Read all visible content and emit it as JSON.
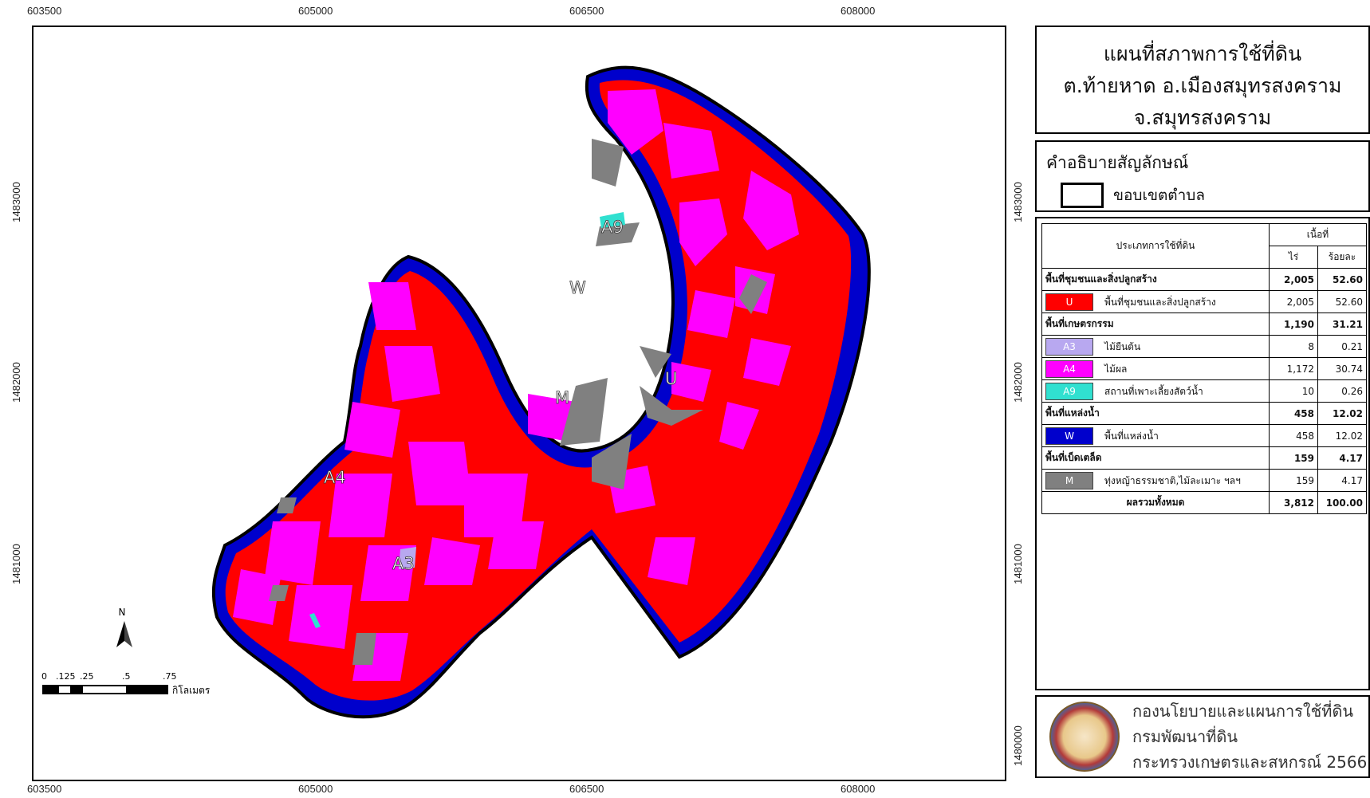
{
  "coords": {
    "top_x": [
      "603500",
      "605000",
      "606500",
      "608000"
    ],
    "bottom_x": [
      "603500",
      "605000",
      "606500",
      "608000"
    ],
    "left_y": [
      "1483000",
      "1482000",
      "1481000"
    ],
    "right_y": [
      "1483000",
      "1482000",
      "1481000",
      "1480000"
    ]
  },
  "title": {
    "line1": "แผนที่สภาพการใช้ที่ดิน",
    "line2": "ต.ท้ายหาด อ.เมืองสมุทรสงคราม",
    "line3": "จ.สมุทรสงคราม"
  },
  "legend": {
    "title": "คำอธิบายสัญลักษณ์",
    "boundary_label": "ขอบเขตตำบล"
  },
  "table": {
    "header_type": "ประเภทการใช้ที่ดิน",
    "header_area": "เนื้อที่",
    "header_rai": "ไร่",
    "header_percent": "ร้อยละ",
    "rows": [
      {
        "kind": "cat",
        "label": "พื้นที่ชุมชนและสิ่งปลูกสร้าง",
        "rai": "2,005",
        "pct": "52.60"
      },
      {
        "kind": "item",
        "code": "U",
        "color": "#ff0000",
        "label": "พื้นที่ชุมชนและสิ่งปลูกสร้าง",
        "rai": "2,005",
        "pct": "52.60"
      },
      {
        "kind": "cat",
        "label": "พื้นที่เกษตรกรรม",
        "rai": "1,190",
        "pct": "31.21"
      },
      {
        "kind": "item",
        "code": "A3",
        "color": "#b8a8f0",
        "label": "ไม้ยืนต้น",
        "rai": "8",
        "pct": "0.21"
      },
      {
        "kind": "item",
        "code": "A4",
        "color": "#ff00ff",
        "label": "ไม้ผล",
        "rai": "1,172",
        "pct": "30.74"
      },
      {
        "kind": "item",
        "code": "A9",
        "color": "#30e0d0",
        "label": "สถานที่เพาะเลี้ยงสัตว์น้ำ",
        "rai": "10",
        "pct": "0.26"
      },
      {
        "kind": "cat",
        "label": "พื้นที่แหล่งน้ำ",
        "rai": "458",
        "pct": "12.02"
      },
      {
        "kind": "item",
        "code": "W",
        "color": "#0000cc",
        "label": "พื้นที่แหล่งน้ำ",
        "rai": "458",
        "pct": "12.02"
      },
      {
        "kind": "cat",
        "label": "พื้นที่เบ็ดเตล็ด",
        "rai": "159",
        "pct": "4.17"
      },
      {
        "kind": "item",
        "code": "M",
        "color": "#808080",
        "label": "ทุ่งหญ้าธรรมชาติ,ไม้ละเมาะ ฯลฯ",
        "rai": "159",
        "pct": "4.17"
      },
      {
        "kind": "total",
        "label": "ผลรวมทั้งหมด",
        "rai": "3,812",
        "pct": "100.00"
      }
    ]
  },
  "credit": {
    "line1": "กองนโยบายและแผนการใช้ที่ดิน",
    "line2": "กรมพัฒนาที่ดิน",
    "line3": "กระทรวงเกษตรและสหกรณ์ 2566"
  },
  "map": {
    "labels": {
      "A9": "A9",
      "W": "W",
      "U": "U",
      "M": "M",
      "A4": "A4",
      "A3": "A3"
    },
    "north": "N",
    "scale_ticks": [
      "0",
      ".125",
      ".25",
      ".5",
      ".75"
    ],
    "scale_unit": "กิโลเมตร"
  },
  "colors": {
    "urban": "#ff0000",
    "fruit": "#ff00ff",
    "water": "#0000cc",
    "misc": "#808080",
    "perennial": "#b8a8f0",
    "aquaculture": "#30e0d0"
  }
}
